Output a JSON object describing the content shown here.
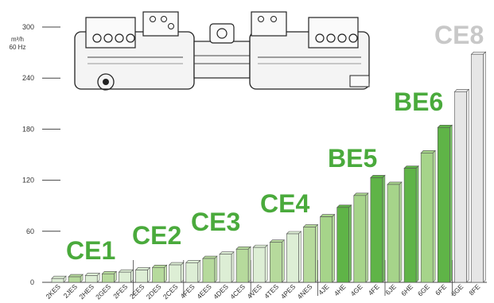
{
  "chart_data": {
    "type": "bar",
    "title": "",
    "xlabel": "",
    "ylabel_lines": [
      "m³/h",
      "60 Hz"
    ],
    "ylim": [
      0,
      300
    ],
    "yticks": [
      0,
      60,
      120,
      180,
      240,
      300
    ],
    "grid": false,
    "categories": [
      "2KES",
      "2JES",
      "2HES",
      "2GES",
      "2FES",
      "2EES",
      "2DES",
      "2CES",
      "4FES",
      "4EES",
      "4DES",
      "4CES",
      "4VES",
      "4TES",
      "4PES",
      "4NES",
      "4JE",
      "4HE",
      "4GE",
      "4FE",
      "6JE",
      "6HE",
      "6GE",
      "6FE",
      "8GE",
      "8FE"
    ],
    "values": [
      4.5,
      6.5,
      8,
      10,
      12,
      14.5,
      17.5,
      20.5,
      23,
      28,
      33,
      39,
      41,
      47,
      57,
      65,
      77,
      88,
      102,
      123,
      115,
      134,
      152,
      182,
      224,
      268
    ],
    "groups": [
      {
        "label": "CE1",
        "start": 0,
        "end": 4
      },
      {
        "label": "CE2",
        "start": 5,
        "end": 7
      },
      {
        "label": "CE3",
        "start": 8,
        "end": 11
      },
      {
        "label": "CE4",
        "start": 12,
        "end": 15
      },
      {
        "label": "BE5",
        "start": 16,
        "end": 19
      },
      {
        "label": "BE6",
        "start": 20,
        "end": 23
      },
      {
        "label": "CE8",
        "start": 24,
        "end": 25
      }
    ],
    "colors": {
      "ce_fill_light": "#ddeed5",
      "ce_fill_dark": "#b6da9c",
      "be_fill_light": "#a6d48a",
      "be_fill_dark": "#5fb447",
      "ce8_fill": "#e6e6e6",
      "group_label_green": "#4aaa3c",
      "group_label_grey": "#c8c8c8",
      "axis": "#444444"
    }
  }
}
